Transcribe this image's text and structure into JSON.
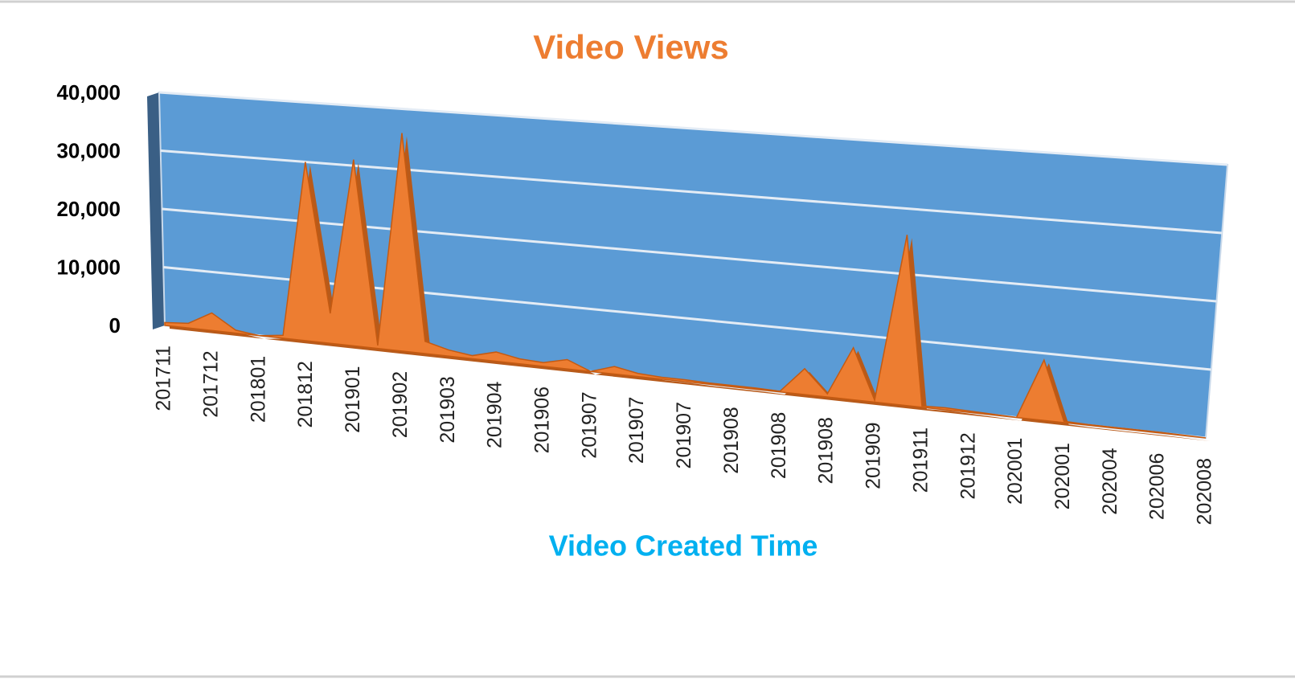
{
  "chart_data": {
    "type": "area3d",
    "title": "Video Views",
    "x_label": "Video Created Time",
    "categories": [
      "201711",
      null,
      "201712",
      null,
      "201801",
      null,
      "201812",
      null,
      "201901",
      null,
      "201902",
      null,
      "201903",
      null,
      "201904",
      null,
      "201906",
      null,
      "201907",
      null,
      "201907",
      null,
      "201907",
      null,
      "201908",
      null,
      "201908",
      null,
      "201908",
      null,
      "201909",
      null,
      "201911",
      null,
      "201912",
      null,
      "202001",
      null,
      "202001",
      null,
      "202004",
      null,
      "202006",
      null,
      "202008"
    ],
    "values": [
      500,
      800,
      3000,
      500,
      0,
      500,
      30000,
      5000,
      31000,
      500,
      36000,
      2000,
      1000,
      500,
      1500,
      800,
      600,
      1500,
      0,
      1200,
      500,
      300,
      300,
      200,
      200,
      200,
      100,
      4000,
      500,
      8000,
      300,
      26000,
      200,
      300,
      200,
      100,
      0,
      9000,
      200,
      100,
      100,
      100,
      100,
      50,
      0
    ],
    "color": "#ed7d31",
    "ylim": [
      0,
      40000
    ],
    "yticks": [
      0,
      {
        "value": 10000,
        "label": "10,000"
      },
      {
        "value": 20000,
        "label": "20,000"
      },
      {
        "value": 30000,
        "label": "30,000"
      },
      {
        "value": 40000,
        "label": "40,000"
      }
    ],
    "grid": true
  }
}
